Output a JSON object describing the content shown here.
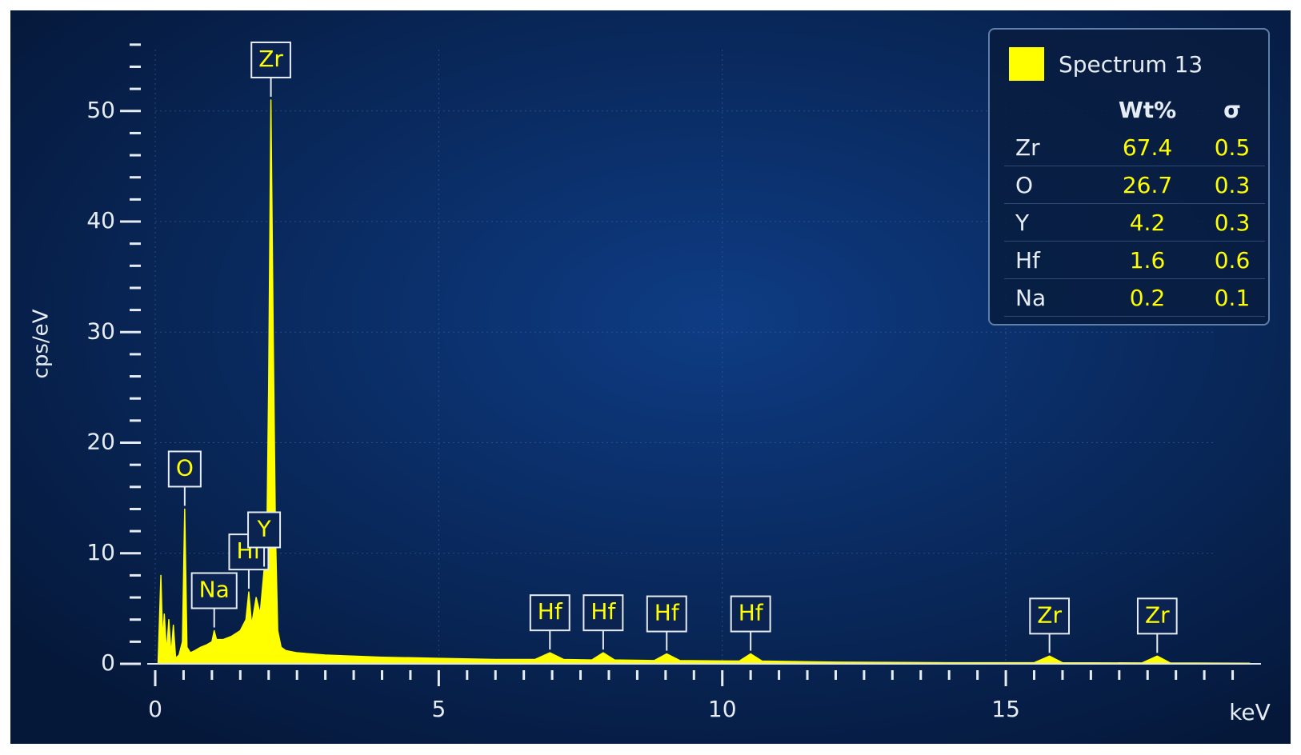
{
  "chart_data": {
    "type": "area",
    "x_label": "keV",
    "y_label": "cps/eV",
    "x": [
      0.05,
      0.1,
      0.13,
      0.16,
      0.2,
      0.24,
      0.28,
      0.32,
      0.36,
      0.42,
      0.48,
      0.52,
      0.56,
      0.62,
      0.7,
      0.8,
      0.9,
      1.0,
      1.04,
      1.08,
      1.2,
      1.35,
      1.5,
      1.6,
      1.65,
      1.7,
      1.78,
      1.85,
      1.92,
      1.97,
      2.0,
      2.04,
      2.08,
      2.12,
      2.16,
      2.22,
      2.3,
      2.5,
      3,
      3.5,
      4,
      5,
      6,
      6.7,
      6.96,
      7.2,
      7.7,
      7.9,
      8.1,
      8.8,
      9.02,
      9.25,
      10.3,
      10.5,
      10.7,
      12,
      14,
      15.5,
      15.77,
      16,
      17.4,
      17.67,
      17.9,
      19.3
    ],
    "series": [
      {
        "name": "Spectrum 13",
        "color": "#ffff00",
        "values": [
          0,
          8,
          2,
          4.5,
          1,
          4,
          0.8,
          3.5,
          0.5,
          0.8,
          2,
          14,
          1.5,
          1,
          1.2,
          1.5,
          1.7,
          2,
          3,
          2.2,
          2.2,
          2.5,
          3,
          4,
          6.5,
          3.5,
          6,
          4.5,
          8.5,
          12,
          25,
          51,
          30,
          12,
          3,
          1.5,
          1.2,
          1,
          0.8,
          0.7,
          0.6,
          0.5,
          0.4,
          0.4,
          1,
          0.4,
          0.35,
          1,
          0.35,
          0.3,
          0.9,
          0.3,
          0.25,
          0.9,
          0.25,
          0.15,
          0.1,
          0.1,
          0.7,
          0.1,
          0.08,
          0.7,
          0.08,
          0.05
        ]
      }
    ],
    "xlim": [
      0,
      19.5
    ],
    "ylim": [
      0,
      57
    ],
    "xticks": [
      0,
      5,
      10,
      15
    ],
    "yticks": [
      0,
      10,
      20,
      30,
      40,
      50
    ],
    "xminorticks": [
      0.5,
      1,
      1.5,
      2,
      2.5,
      3,
      3.5,
      4,
      4.5,
      5.5,
      6,
      6.5,
      7,
      7.5,
      8,
      8.5,
      9,
      9.5,
      10.5,
      11,
      11.5,
      12,
      12.5,
      13,
      13.5,
      14,
      14.5,
      15.5,
      16,
      16.5,
      17,
      17.5,
      18,
      18.5,
      19
    ],
    "yminorticks": [
      2,
      4,
      6,
      8,
      12,
      14,
      16,
      18,
      22,
      24,
      26,
      28,
      32,
      34,
      36,
      38,
      42,
      44,
      46,
      48,
      52,
      54,
      56
    ],
    "grid": true,
    "annotations": [
      {
        "text": "O",
        "x": 0.52
      },
      {
        "text": "Na",
        "x": 1.04
      },
      {
        "text": "Hf",
        "x": 1.65
      },
      {
        "text": "Y",
        "x": 1.92
      },
      {
        "text": "Zr",
        "x": 2.04
      },
      {
        "text": "Hf",
        "x": 6.96
      },
      {
        "text": "Hf",
        "x": 7.9
      },
      {
        "text": "Hf",
        "x": 9.02
      },
      {
        "text": "Hf",
        "x": 10.5
      },
      {
        "text": "Zr",
        "x": 15.77
      },
      {
        "text": "Zr",
        "x": 17.67
      }
    ],
    "legend_table": {
      "columns": [
        "Wt%",
        "σ"
      ],
      "rows": [
        [
          "Zr",
          67.4,
          0.5
        ],
        [
          "O",
          26.7,
          0.3
        ],
        [
          "Y",
          4.2,
          0.3
        ],
        [
          "Hf",
          1.6,
          0.6
        ],
        [
          "Na",
          0.2,
          0.1
        ]
      ]
    }
  }
}
